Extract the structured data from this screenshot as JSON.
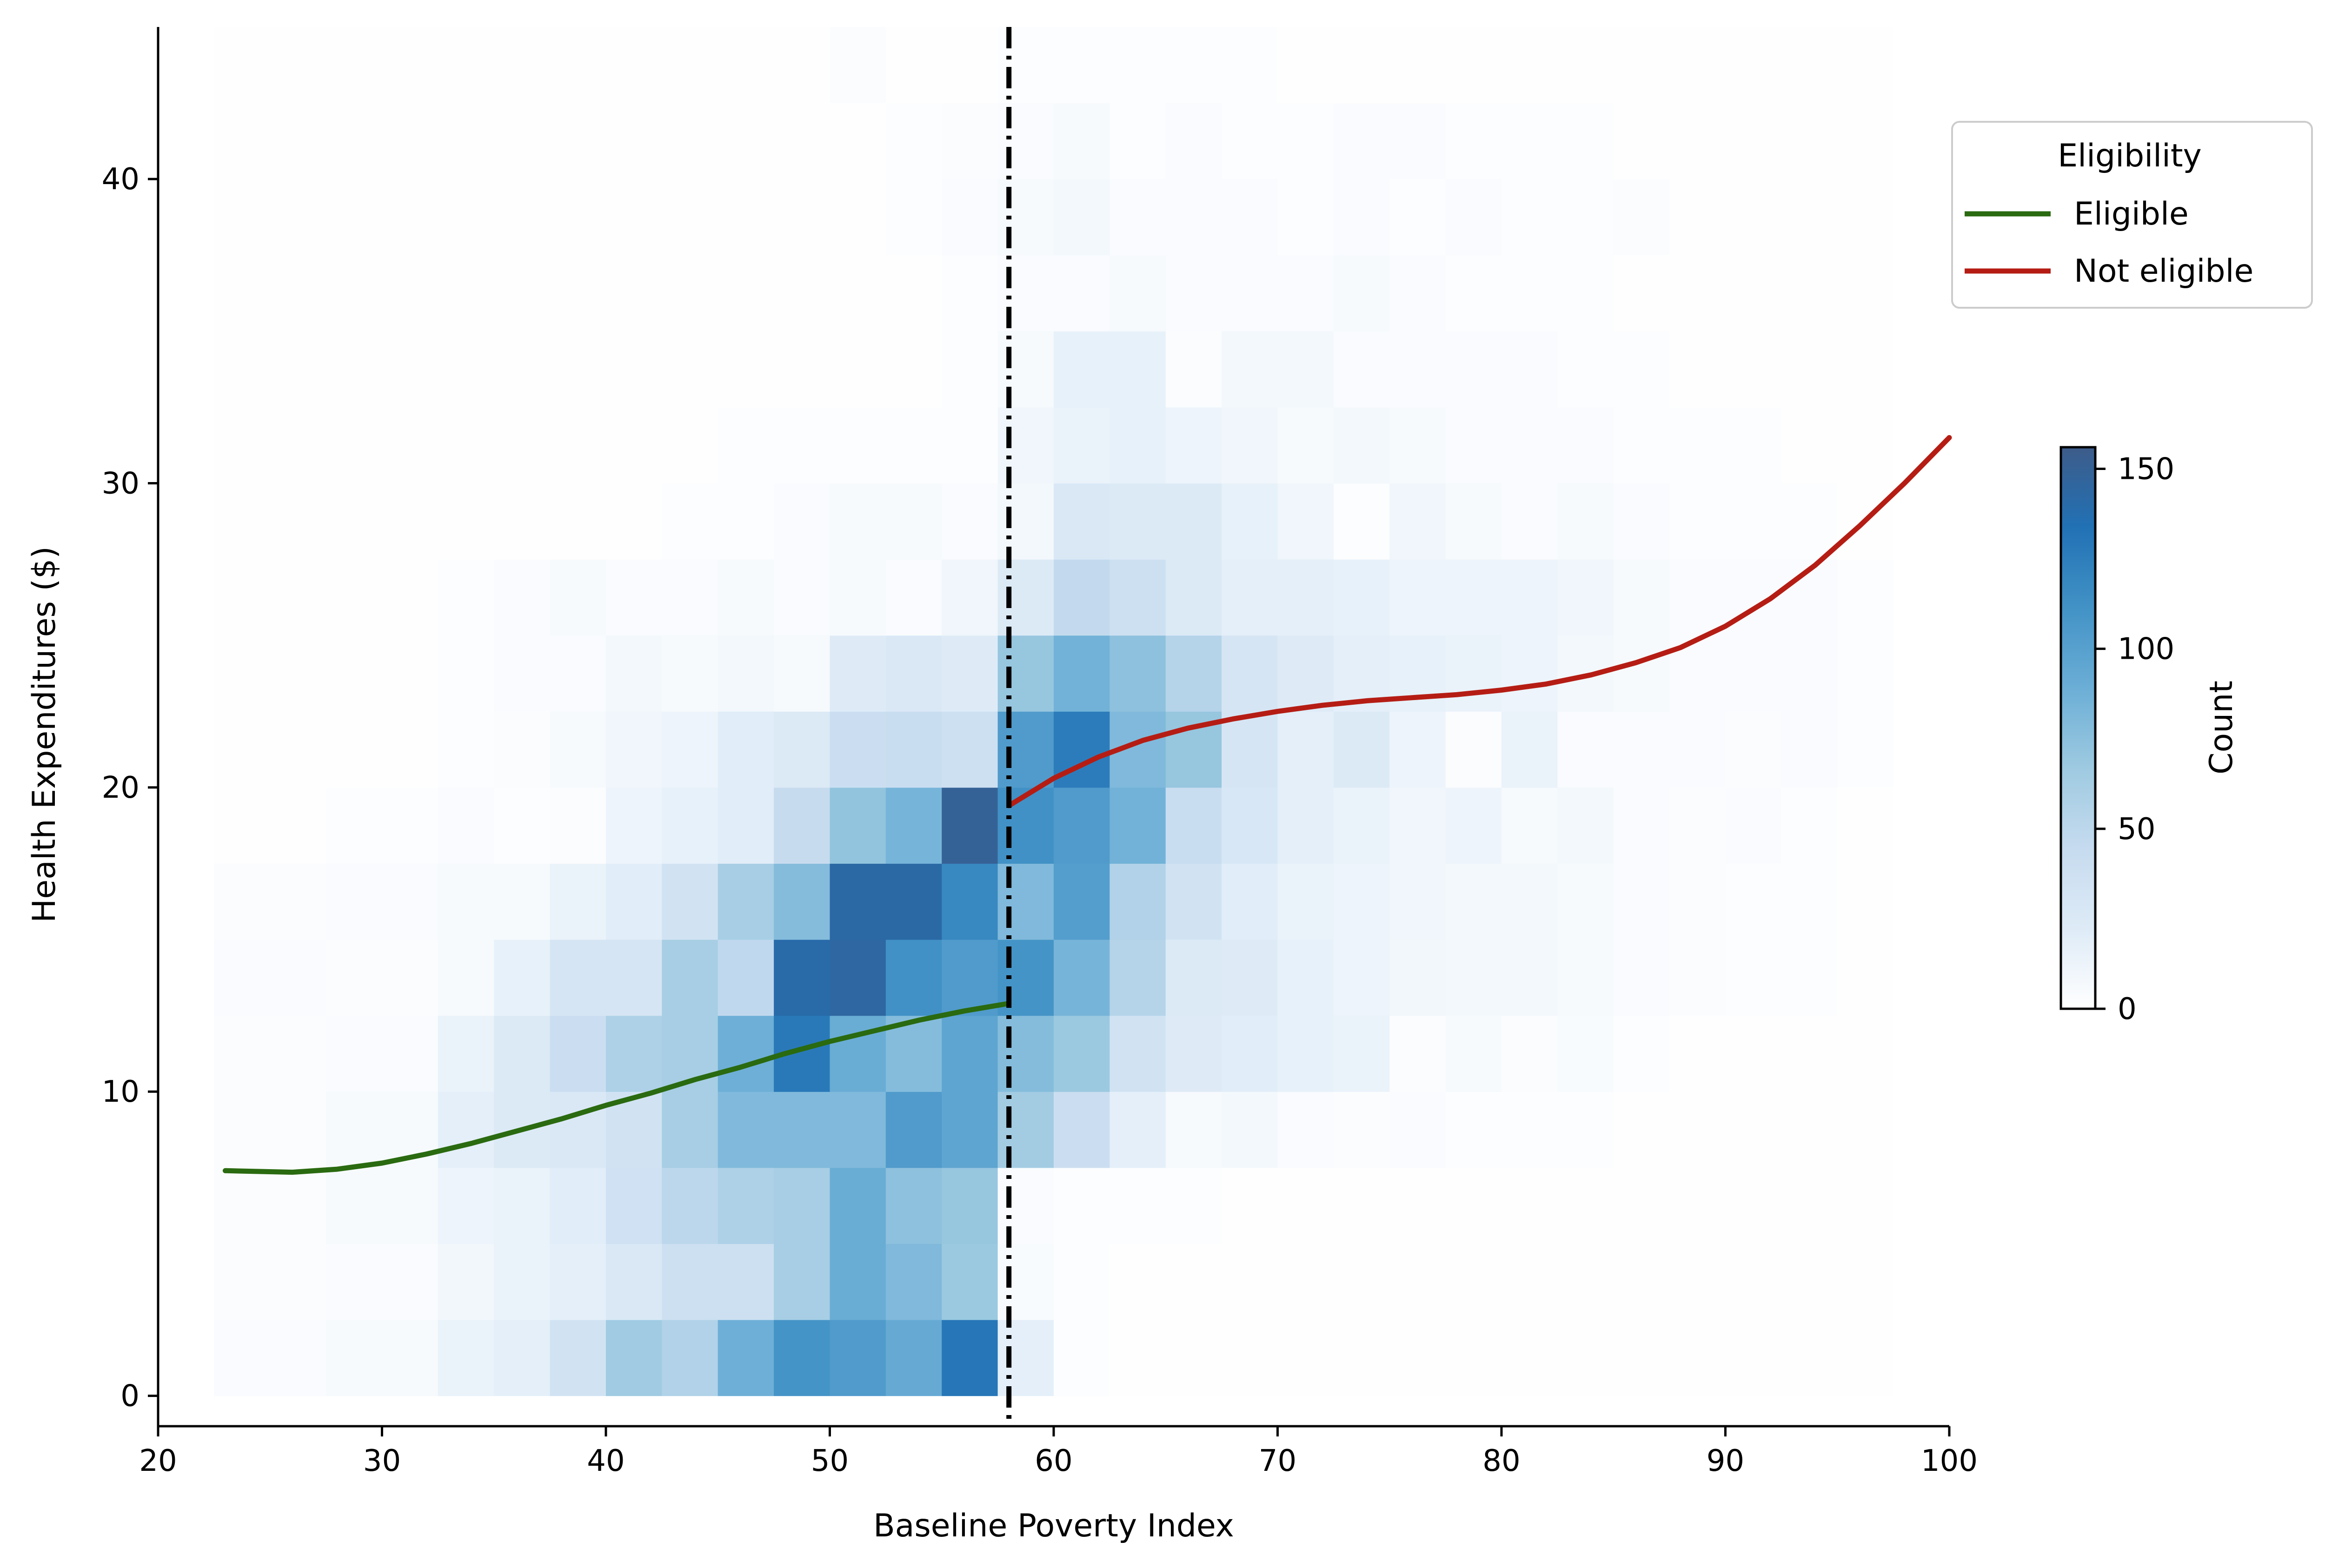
{
  "chart_data": {
    "type": "heatmap",
    "title": "",
    "xlabel": "Baseline Poverty Index",
    "ylabel": "Health Expenditures ($)",
    "xlim": [
      20,
      100
    ],
    "ylim": [
      -1,
      45
    ],
    "x_ticks": [
      20,
      30,
      40,
      50,
      60,
      70,
      80,
      90,
      100
    ],
    "y_ticks": [
      0,
      10,
      20,
      30,
      40
    ],
    "grid": false,
    "cutoff": 58,
    "heatmap": {
      "x_edges": [
        22.5,
        25,
        27.5,
        30,
        32.5,
        35,
        37.5,
        40,
        42.5,
        45,
        47.5,
        50,
        52.5,
        55,
        57.5,
        60,
        62.5,
        65,
        67.5,
        70,
        72.5,
        75,
        77.5,
        80,
        82.5,
        85,
        87.5,
        90,
        92.5,
        95,
        97.5
      ],
      "y_edges": [
        0,
        2.5,
        5,
        7.5,
        10,
        12.5,
        15,
        17.5,
        20,
        22.5,
        25,
        27.5,
        30,
        32.5,
        35,
        37.5,
        40,
        42.5,
        45
      ],
      "colorscale": [
        "#ffffff",
        "#deebf7",
        "#c6dbef",
        "#9ecae1",
        "#6baed6",
        "#4292c6",
        "#2171b5",
        "#3d5c8a"
      ],
      "counts": [
        [
          4,
          4,
          6,
          6,
          14,
          18,
          34,
          66,
          56,
          88,
          110,
          104,
          92,
          130,
          18,
          2,
          1,
          1,
          1,
          1,
          1,
          1,
          1,
          1,
          1,
          1,
          1,
          1,
          1,
          1
        ],
        [
          3,
          3,
          4,
          4,
          9,
          14,
          18,
          26,
          38,
          38,
          62,
          90,
          80,
          68,
          5,
          2,
          1,
          1,
          1,
          1,
          1,
          1,
          1,
          1,
          1,
          1,
          1,
          1,
          1,
          1
        ],
        [
          3,
          3,
          6,
          6,
          12,
          14,
          20,
          36,
          50,
          58,
          62,
          90,
          74,
          70,
          4,
          2,
          2,
          2,
          1,
          1,
          1,
          1,
          1,
          1,
          1,
          1,
          1,
          1,
          1,
          1
        ],
        [
          3,
          3,
          6,
          6,
          18,
          24,
          26,
          34,
          62,
          80,
          80,
          80,
          104,
          96,
          64,
          40,
          18,
          6,
          8,
          4,
          3,
          4,
          2,
          2,
          2,
          1,
          1,
          1,
          1,
          1
        ],
        [
          3,
          3,
          4,
          4,
          14,
          24,
          40,
          58,
          62,
          88,
          128,
          90,
          78,
          96,
          78,
          68,
          34,
          22,
          20,
          16,
          14,
          3,
          6,
          3,
          5,
          2,
          1,
          1,
          1,
          1
        ],
        [
          4,
          4,
          3,
          3,
          6,
          16,
          30,
          30,
          62,
          48,
          140,
          144,
          112,
          104,
          110,
          84,
          54,
          24,
          22,
          16,
          12,
          9,
          8,
          8,
          6,
          4,
          3,
          2,
          2,
          1
        ],
        [
          3,
          3,
          4,
          4,
          6,
          6,
          14,
          20,
          34,
          62,
          78,
          142,
          142,
          118,
          80,
          102,
          56,
          34,
          20,
          14,
          12,
          10,
          8,
          8,
          6,
          4,
          3,
          2,
          2,
          1
        ],
        [
          1,
          1,
          2,
          2,
          4,
          2,
          3,
          12,
          16,
          20,
          44,
          72,
          84,
          150,
          112,
          104,
          86,
          42,
          28,
          18,
          14,
          10,
          12,
          6,
          8,
          4,
          3,
          4,
          2,
          1
        ],
        [
          1,
          1,
          1,
          1,
          2,
          3,
          6,
          10,
          12,
          20,
          24,
          40,
          42,
          38,
          104,
          126,
          80,
          70,
          30,
          18,
          24,
          12,
          3,
          14,
          4,
          4,
          4,
          3,
          4,
          2
        ],
        [
          1,
          1,
          1,
          1,
          2,
          4,
          4,
          8,
          6,
          8,
          6,
          22,
          26,
          22,
          70,
          86,
          74,
          54,
          30,
          22,
          18,
          16,
          14,
          12,
          8,
          6,
          4,
          4,
          4,
          2
        ],
        [
          1,
          1,
          1,
          1,
          2,
          4,
          6,
          4,
          4,
          6,
          4,
          6,
          4,
          10,
          24,
          46,
          38,
          24,
          18,
          18,
          16,
          12,
          12,
          12,
          10,
          6,
          4,
          4,
          4,
          2
        ],
        [
          1,
          1,
          1,
          1,
          1,
          1,
          1,
          1,
          2,
          2,
          4,
          6,
          6,
          4,
          8,
          26,
          24,
          24,
          16,
          10,
          2,
          10,
          6,
          4,
          6,
          4,
          2,
          2,
          2,
          1
        ],
        [
          1,
          1,
          1,
          1,
          1,
          1,
          1,
          1,
          1,
          2,
          2,
          2,
          2,
          2,
          10,
          14,
          16,
          12,
          10,
          6,
          8,
          6,
          4,
          4,
          4,
          2,
          2,
          2,
          1,
          1
        ],
        [
          1,
          1,
          1,
          1,
          1,
          1,
          1,
          1,
          1,
          1,
          1,
          1,
          1,
          2,
          6,
          16,
          16,
          3,
          8,
          8,
          4,
          4,
          4,
          4,
          2,
          2,
          1,
          1,
          1,
          1
        ],
        [
          1,
          1,
          1,
          1,
          1,
          1,
          1,
          1,
          1,
          1,
          1,
          1,
          1,
          2,
          4,
          4,
          6,
          4,
          4,
          4,
          6,
          4,
          2,
          2,
          2,
          1,
          1,
          1,
          1,
          1
        ],
        [
          1,
          1,
          1,
          1,
          1,
          1,
          1,
          1,
          1,
          1,
          1,
          1,
          2,
          4,
          6,
          8,
          4,
          4,
          4,
          2,
          4,
          2,
          4,
          2,
          2,
          3,
          1,
          1,
          1,
          1
        ],
        [
          1,
          1,
          1,
          1,
          1,
          1,
          1,
          1,
          1,
          1,
          1,
          1,
          2,
          3,
          4,
          6,
          2,
          4,
          2,
          2,
          4,
          4,
          2,
          2,
          2,
          1,
          1,
          1,
          1,
          1
        ],
        [
          1,
          1,
          1,
          1,
          1,
          1,
          1,
          1,
          1,
          1,
          1,
          3,
          1,
          1,
          2,
          2,
          2,
          2,
          2,
          1,
          1,
          1,
          1,
          1,
          1,
          1,
          1,
          1,
          1,
          1
        ]
      ]
    },
    "series": [
      {
        "name": "Eligible",
        "color": "#2a6a10",
        "x": [
          23,
          26,
          28,
          30,
          32,
          34,
          36,
          38,
          40,
          42,
          44,
          46,
          48,
          50,
          52,
          54,
          56,
          58
        ],
        "y": [
          7.4,
          7.35,
          7.45,
          7.65,
          7.95,
          8.3,
          8.7,
          9.1,
          9.55,
          9.95,
          10.4,
          10.8,
          11.25,
          11.65,
          12.0,
          12.35,
          12.65,
          12.9
        ]
      },
      {
        "name": "Not eligible",
        "color": "#b51d14",
        "x": [
          58,
          60,
          62,
          64,
          66,
          68,
          70,
          72,
          74,
          76,
          78,
          80,
          82,
          84,
          86,
          88,
          90,
          92,
          94,
          96,
          98,
          100
        ],
        "y": [
          19.4,
          20.3,
          21.0,
          21.55,
          21.95,
          22.25,
          22.5,
          22.7,
          22.85,
          22.95,
          23.05,
          23.2,
          23.4,
          23.7,
          24.1,
          24.6,
          25.3,
          26.2,
          27.3,
          28.6,
          30.0,
          31.5
        ]
      }
    ],
    "legend": {
      "title": "Eligibility",
      "position": "top-right",
      "entries": [
        "Eligible",
        "Not eligible"
      ]
    },
    "colorbar": {
      "label": "Count",
      "range": [
        0,
        156
      ],
      "ticks": [
        0,
        50,
        100,
        150
      ]
    }
  }
}
